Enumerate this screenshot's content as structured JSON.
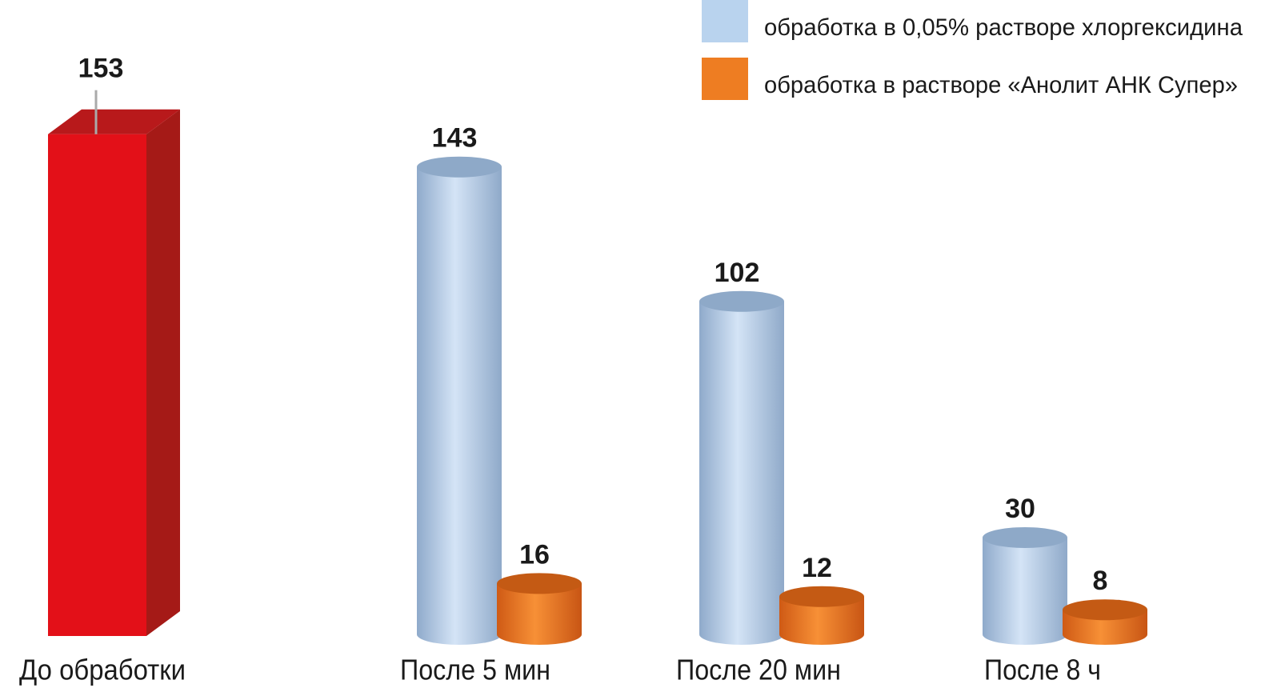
{
  "chart_data": {
    "type": "bar3d",
    "categories": [
      "До обработки",
      "После 5 мин",
      "После 20 мин",
      "После 8 ч"
    ],
    "series": [
      {
        "color": "#e31018",
        "values": [
          153,
          null,
          null,
          null
        ]
      },
      {
        "name": "обработка в 0,05% растворе хлоргексидина",
        "color": "#b9d3ee",
        "values": [
          null,
          143,
          102,
          30
        ]
      },
      {
        "name": "обработка в растворе «Анолит АНК Супер»",
        "color": "#ee7d22",
        "values": [
          null,
          16,
          12,
          8
        ]
      }
    ]
  }
}
